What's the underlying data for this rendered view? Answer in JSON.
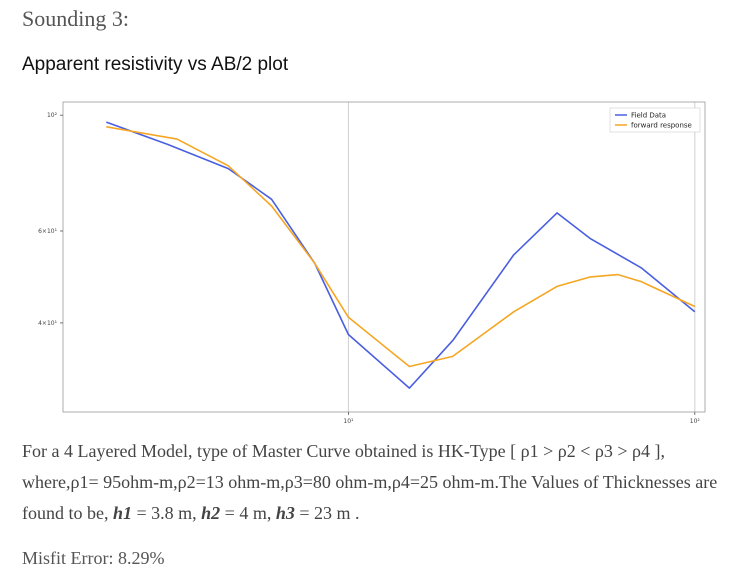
{
  "heading": "Sounding 3:",
  "subheading": "Apparent resistivity vs AB/2 plot",
  "description": {
    "part1": "For a 4 Layered Model, type of Master Curve obtained is HK-Type [ ρ1 > ρ2 < ρ3 > ρ4 ], where,ρ1= 95ohm-m,ρ2=13 ohm-m,ρ3=80 ohm-m,ρ4=25 ohm-m.The Values of Thicknesses are found to be, ",
    "h1_label": "h1",
    "h1_value": " = 3.8 m, ",
    "h2_label": "h2",
    "h2_value": " = 4 m, ",
    "h3_label": "h3",
    "h3_value": " = 23 m ."
  },
  "misfit": "Misfit Error: 8.29%",
  "chart_data": {
    "type": "line",
    "xscale": "log",
    "yscale": "log",
    "xlim": [
      1.5,
      107
    ],
    "ylim": [
      27,
      106
    ],
    "grid": "major x lines",
    "legend": "top-right",
    "yticks": [
      {
        "value": 100,
        "label": "10²"
      },
      {
        "value": 60,
        "label": "6×10¹"
      },
      {
        "value": 40,
        "label": "4×10¹"
      }
    ],
    "xticks": [
      {
        "value": 10,
        "label": "10¹"
      },
      {
        "value": 100,
        "label": "10²"
      }
    ],
    "series": [
      {
        "name": "Field Data",
        "color": "#4a5fe0",
        "x": [
          2,
          3,
          4.5,
          6,
          8,
          10,
          15,
          20,
          30,
          40,
          50,
          70,
          100
        ],
        "y": [
          97,
          88,
          79,
          69,
          52,
          38,
          30,
          37,
          54,
          65,
          58,
          51,
          42
        ]
      },
      {
        "name": "forward response",
        "color": "#f5a623",
        "x": [
          2,
          3.2,
          4.5,
          6,
          8,
          10,
          15,
          20,
          30,
          40,
          50,
          60,
          70,
          100
        ],
        "y": [
          95,
          90,
          80,
          67,
          52,
          41,
          33,
          34.5,
          42,
          47,
          49,
          49.5,
          48,
          43
        ]
      }
    ]
  }
}
